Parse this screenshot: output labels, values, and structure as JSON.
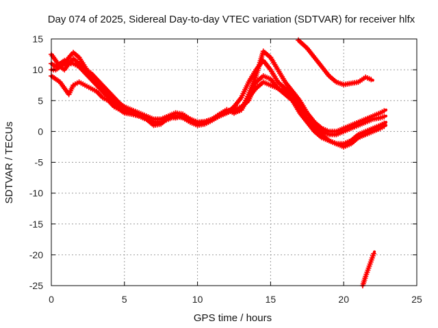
{
  "chart_data": {
    "type": "scatter",
    "title": "Day 074 of 2025, Sidereal Day-to-day VTEC variation (SDTVAR) for receiver hlfx",
    "xlabel": "GPS time / hours",
    "ylabel": "SDTVAR / TECUs",
    "xlim": [
      0,
      25
    ],
    "ylim": [
      -25,
      15
    ],
    "xticks": [
      0,
      5,
      10,
      15,
      20,
      25
    ],
    "yticks": [
      15,
      10,
      5,
      0,
      -5,
      -10,
      -15,
      -20,
      -25
    ],
    "grid": true,
    "marker": "plus",
    "color": "#ff0000",
    "series": [
      {
        "name": "track-1",
        "x": [
          0,
          0.3,
          0.6,
          0.9,
          1.2,
          1.5,
          1.9,
          2.3,
          2.7,
          3.1,
          3.5,
          3.9,
          4.3,
          4.7,
          5.0,
          5.5,
          6.0,
          6.5,
          7.0,
          7.5,
          8.0,
          8.5,
          9.0,
          9.5,
          10.0,
          10.5,
          11.0,
          11.5,
          12.0,
          12.5,
          13.0,
          13.5,
          14.0,
          14.5,
          15.0,
          15.5,
          16.0,
          16.5,
          17.0,
          17.5,
          18.0,
          18.5,
          19.0,
          19.5,
          20.0,
          20.5,
          21.0,
          21.5,
          22.0,
          22.5,
          22.9
        ],
        "y": [
          12.5,
          11.5,
          10.5,
          11,
          12,
          12.8,
          12,
          10.5,
          9,
          8,
          7,
          6,
          5,
          4.2,
          3.5,
          3,
          2.5,
          2,
          1.5,
          1.5,
          2,
          2.5,
          2.2,
          1.5,
          1,
          1.2,
          1.8,
          2.5,
          3,
          4,
          5.5,
          8,
          10,
          11.5,
          10,
          8,
          7,
          6,
          4,
          2,
          1,
          0,
          -0.5,
          -0.5,
          0,
          0.5,
          1,
          1.5,
          2,
          2.2,
          2.5
        ]
      },
      {
        "name": "track-2",
        "x": [
          0,
          0.3,
          0.6,
          0.9,
          1.2,
          1.5,
          1.9,
          2.3,
          2.7,
          3.1,
          3.5,
          3.9,
          4.3,
          4.7,
          5.0,
          5.5,
          6.0,
          6.5,
          7.0,
          7.5,
          8.0,
          8.5,
          9.0,
          9.5,
          10.0,
          10.5,
          11.0,
          11.5,
          12.0,
          12.5,
          13.0,
          13.5,
          14.0,
          14.5,
          15.0,
          15.5,
          16.0,
          16.5,
          17.0,
          17.5,
          18.0,
          18.5,
          19.0,
          19.5,
          20.0,
          20.5,
          21.0,
          21.5,
          22.0,
          22.5,
          22.9
        ],
        "y": [
          11,
          10.5,
          11,
          11.5,
          11,
          11.8,
          11,
          10,
          9.5,
          8.5,
          7.5,
          6.5,
          5.5,
          4.5,
          4,
          3.5,
          3,
          2.5,
          2,
          2,
          2.5,
          3,
          2.8,
          2,
          1.5,
          1.6,
          2,
          2.8,
          3.5,
          3,
          3.5,
          6,
          9,
          13,
          12,
          10,
          8,
          6.5,
          5,
          3,
          1.5,
          0.5,
          0,
          0,
          0.5,
          1,
          1.5,
          2,
          2.5,
          3,
          3.5
        ]
      },
      {
        "name": "track-3",
        "x": [
          0,
          0.3,
          0.6,
          0.9,
          1.2,
          1.5,
          1.9,
          2.3,
          2.7,
          3.1,
          3.5,
          3.9,
          4.3,
          4.7,
          5.0,
          5.5,
          6.0,
          6.5,
          7.0,
          7.5,
          8.0,
          8.5,
          9.0,
          9.5,
          10.0,
          10.5,
          11.0,
          11.5,
          12.0,
          12.5,
          13.0,
          13.5,
          14.0,
          14.5,
          15.0,
          15.5,
          16.0,
          16.5,
          17.0,
          17.5,
          18.0,
          18.5,
          19.0,
          19.5,
          20.0,
          20.5,
          21.0,
          21.5,
          22.0,
          22.5,
          22.9
        ],
        "y": [
          9,
          8.5,
          8,
          7,
          6,
          7.5,
          8,
          7.5,
          7,
          6.5,
          5.5,
          5,
          4,
          3.5,
          3,
          2.8,
          2.5,
          2,
          1,
          1.2,
          2.3,
          2.2,
          2.5,
          1.8,
          1.2,
          1.5,
          2,
          2.5,
          3,
          3.5,
          4,
          5,
          8,
          9,
          8.5,
          7,
          6,
          5,
          3.5,
          2,
          0.5,
          -0.5,
          -1.5,
          -2,
          -2.5,
          -2,
          -1,
          -0.5,
          0,
          0.5,
          1
        ]
      },
      {
        "name": "track-4",
        "x": [
          0,
          0.3,
          0.6,
          0.9,
          1.2,
          1.5,
          1.9,
          2.3,
          2.7,
          3.1,
          3.5,
          3.9,
          4.3,
          4.7,
          5.0,
          5.5,
          6.0,
          6.5,
          7.0,
          7.5,
          8.0,
          8.5,
          9.0,
          9.5,
          10.0,
          10.5,
          11.0,
          11.5,
          12.0,
          12.5,
          13.0,
          13.5,
          14.0,
          14.5,
          15.0,
          15.5,
          16.0,
          16.5,
          17.0,
          17.5,
          18.0,
          18.5,
          19.0,
          19.5,
          20.0,
          20.5,
          21.0,
          21.5,
          22.0,
          22.5,
          22.9
        ],
        "y": [
          10,
          10,
          10.5,
          10,
          11,
          11,
          10.5,
          9.5,
          8.5,
          7.5,
          6.5,
          5.5,
          4.5,
          4,
          3.5,
          3,
          2.5,
          2,
          1.5,
          1.5,
          2,
          2.5,
          2.4,
          2,
          1.5,
          1.5,
          2,
          2.7,
          3.5,
          3,
          3.5,
          5.5,
          7,
          8,
          7.5,
          7,
          6.5,
          5,
          3,
          1.5,
          0,
          -1,
          -1.5,
          -2,
          -2,
          -1.5,
          -0.5,
          0,
          0.5,
          1,
          1.5
        ]
      },
      {
        "name": "track-5",
        "x": [
          16.9,
          17.5,
          18.0,
          18.5,
          19.0,
          19.5,
          20.0,
          20.5,
          21.0,
          21.5,
          22.0
        ],
        "y": [
          14.8,
          13.5,
          12,
          10.5,
          9,
          8,
          7.6,
          7.8,
          8,
          8.8,
          8.3
        ]
      },
      {
        "name": "track-6",
        "x": [
          21.3,
          21.5,
          21.8,
          22.1
        ],
        "y": [
          -25,
          -23.5,
          -21.5,
          -19.5
        ]
      }
    ]
  }
}
